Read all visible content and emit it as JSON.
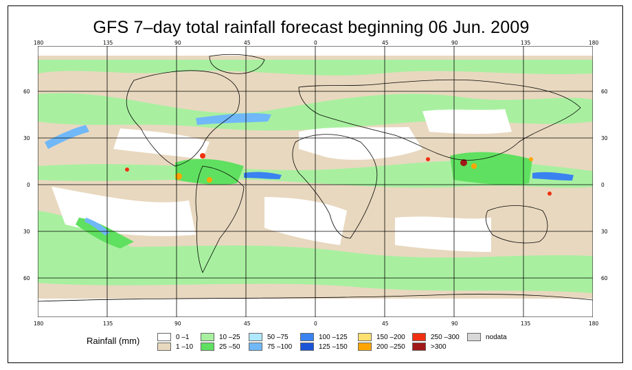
{
  "title": "GFS 7–day total rainfall forecast beginning 06 Jun. 2009",
  "top_lon_labels": [
    "180",
    "135",
    "90",
    "45",
    "0",
    "45",
    "90",
    "135",
    "180"
  ],
  "bottom_lon_labels": [
    "180",
    "135",
    "90",
    "45",
    "0",
    "45",
    "90",
    "135",
    "180"
  ],
  "left_lat_labels": [
    "60",
    "30",
    "0",
    "30",
    "60"
  ],
  "right_lat_labels": [
    "60",
    "30",
    "0",
    "30",
    "60"
  ],
  "legend": {
    "title": "Rainfall (mm)",
    "items": [
      {
        "label": "0 –1",
        "color": "#ffffff"
      },
      {
        "label": "1 –10",
        "color": "#e8d8bf"
      },
      {
        "label": "10 –25",
        "color": "#a8f0a0"
      },
      {
        "label": "25 –50",
        "color": "#60e060"
      },
      {
        "label": "50 –75",
        "color": "#b0e8ff"
      },
      {
        "label": "75 –100",
        "color": "#70b8f8"
      },
      {
        "label": "100 –125",
        "color": "#3a82f0"
      },
      {
        "label": "125 –150",
        "color": "#1a55d8"
      },
      {
        "label": "150 –200",
        "color": "#ffe070"
      },
      {
        "label": "200 –250",
        "color": "#ffa500"
      },
      {
        "label": "250 –300",
        "color": "#f03010"
      },
      {
        "label": ">300",
        "color": "#a01818"
      },
      {
        "label": "nodata",
        "color": "#d8d8d8"
      }
    ]
  }
}
